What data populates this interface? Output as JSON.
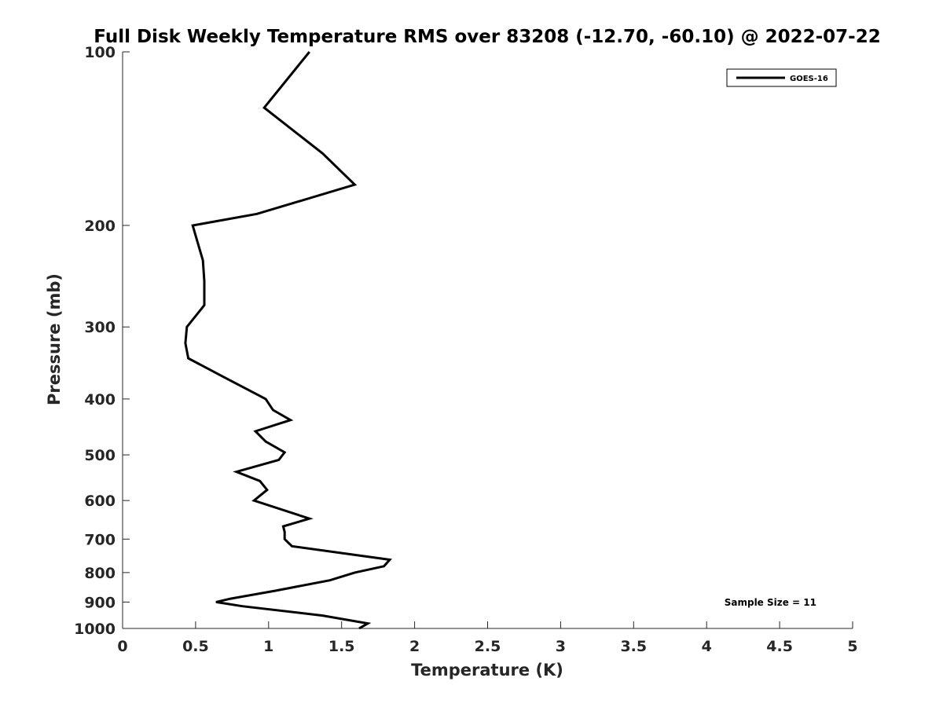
{
  "chart_data": {
    "type": "line",
    "title": "Full Disk Weekly Temperature RMS over 83208 (-12.70, -60.10) @ 2022-07-22",
    "xlabel": "Temperature (K)",
    "ylabel": "Pressure (mb)",
    "xlim": [
      0,
      5
    ],
    "ylim": [
      100,
      1000
    ],
    "y_scale": "log",
    "y_reversed": true,
    "grid": false,
    "xticks": [
      0,
      0.5,
      1,
      1.5,
      2,
      2.5,
      3,
      3.5,
      4,
      4.5,
      5
    ],
    "xtick_labels": [
      "0",
      "0.5",
      "1",
      "1.5",
      "2",
      "2.5",
      "3",
      "3.5",
      "4",
      "4.5",
      "5"
    ],
    "yticks": [
      100,
      200,
      300,
      400,
      500,
      600,
      700,
      800,
      900,
      1000
    ],
    "ytick_labels": [
      "100",
      "200",
      "300",
      "400",
      "500",
      "600",
      "700",
      "800",
      "900",
      "1000"
    ],
    "legend_position": "top-right",
    "series": [
      {
        "name": "GOES-16",
        "color": "#000000",
        "points": [
          [
            1.28,
            100
          ],
          [
            0.97,
            125
          ],
          [
            1.37,
            150
          ],
          [
            1.59,
            170
          ],
          [
            0.92,
            191
          ],
          [
            0.48,
            200
          ],
          [
            0.55,
            230
          ],
          [
            0.56,
            250
          ],
          [
            0.56,
            275
          ],
          [
            0.44,
            300
          ],
          [
            0.43,
            320
          ],
          [
            0.45,
            340
          ],
          [
            0.68,
            365
          ],
          [
            0.98,
            400
          ],
          [
            1.03,
            418
          ],
          [
            1.15,
            435
          ],
          [
            0.91,
            455
          ],
          [
            0.98,
            474
          ],
          [
            1.11,
            495
          ],
          [
            1.07,
            510
          ],
          [
            0.78,
            535
          ],
          [
            0.94,
            555
          ],
          [
            0.99,
            575
          ],
          [
            0.9,
            600
          ],
          [
            1.28,
            645
          ],
          [
            1.1,
            665
          ],
          [
            1.11,
            680
          ],
          [
            1.11,
            700
          ],
          [
            1.16,
            720
          ],
          [
            1.83,
            760
          ],
          [
            1.79,
            780
          ],
          [
            1.59,
            800
          ],
          [
            1.42,
            825
          ],
          [
            1.05,
            860
          ],
          [
            0.74,
            888
          ],
          [
            0.64,
            900
          ],
          [
            0.82,
            915
          ],
          [
            1.37,
            950
          ],
          [
            1.68,
            980
          ],
          [
            1.62,
            1000
          ]
        ]
      }
    ],
    "annotations": [
      "Sample Size = 11"
    ]
  }
}
